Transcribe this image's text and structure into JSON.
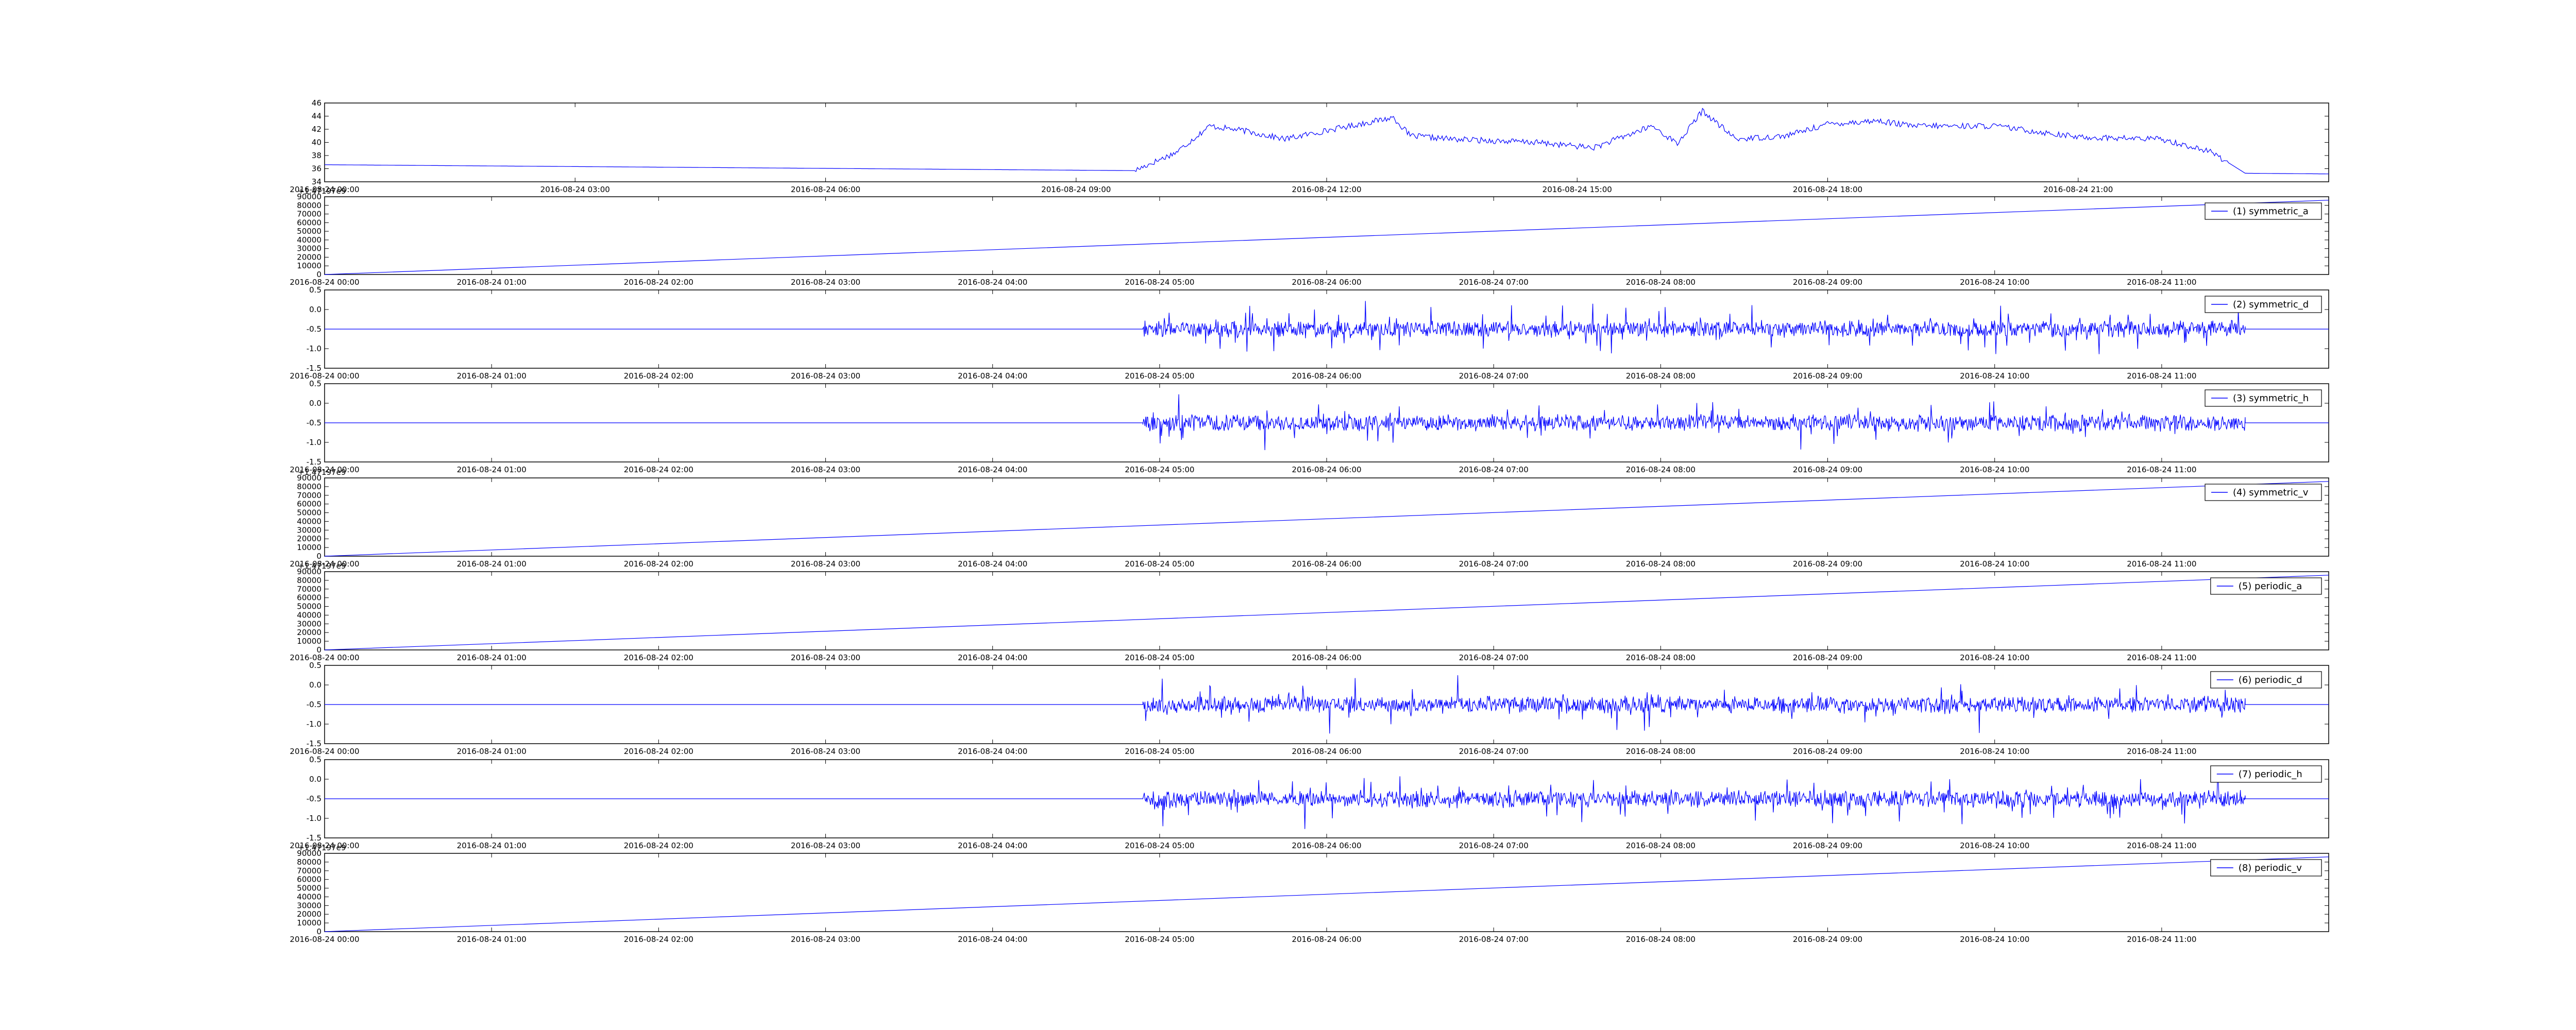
{
  "colors": {
    "series": "#0000ff",
    "frame": "#000000",
    "background": "#ffffff"
  },
  "chart_data": [
    {
      "type": "line",
      "name_in_legend": "",
      "legend": false,
      "ylim": [
        34,
        46
      ],
      "yticks": [
        "34",
        "36",
        "38",
        "40",
        "42",
        "44",
        "46"
      ],
      "xticks": [
        "2016-08-24 00:00",
        "2016-08-24 03:00",
        "2016-08-24 06:00",
        "2016-08-24 09:00",
        "2016-08-24 12:00",
        "2016-08-24 15:00",
        "2016-08-24 18:00",
        "2016-08-24 21:00"
      ],
      "x_hours": [
        0,
        3,
        6,
        9,
        12,
        15,
        18,
        21
      ],
      "x_range_hours": [
        0,
        24
      ],
      "points": [
        [
          0,
          36.6
        ],
        [
          9.7,
          35.7
        ],
        [
          10.2,
          38.5
        ],
        [
          10.6,
          42.5
        ],
        [
          11.0,
          41.8
        ],
        [
          11.5,
          40.5
        ],
        [
          12.0,
          41.8
        ],
        [
          13.0,
          41.0
        ],
        [
          12.8,
          43.8
        ],
        [
          13.5,
          40.5
        ],
        [
          14.5,
          40.0
        ],
        [
          15.2,
          39.2
        ],
        [
          15.9,
          42.5
        ],
        [
          16.2,
          39.8
        ],
        [
          16.5,
          44.8
        ],
        [
          16.9,
          40.5
        ],
        [
          17.5,
          41.0
        ],
        [
          18.0,
          42.8
        ],
        [
          18.6,
          43.3
        ],
        [
          19.0,
          42.5
        ],
        [
          20.0,
          42.5
        ],
        [
          21.0,
          40.8
        ],
        [
          22.0,
          40.5
        ],
        [
          22.6,
          38.5
        ],
        [
          23.0,
          35.3
        ],
        [
          24.0,
          35.2
        ]
      ]
    },
    {
      "type": "line",
      "series": [
        {
          "name": "(1) symmetric_a"
        }
      ],
      "offset_text": "+1.47197e9",
      "ylim": [
        0,
        90000
      ],
      "yticks": [
        "0",
        "10000",
        "20000",
        "30000",
        "40000",
        "50000",
        "60000",
        "70000",
        "80000",
        "90000"
      ],
      "xticks": [
        "2016-08-24 00:00",
        "2016-08-24 01:00",
        "2016-08-24 02:00",
        "2016-08-24 03:00",
        "2016-08-24 04:00",
        "2016-08-24 05:00",
        "2016-08-24 06:00",
        "2016-08-24 07:00",
        "2016-08-24 08:00",
        "2016-08-24 09:00",
        "2016-08-24 10:00",
        "2016-08-24 11:00"
      ],
      "x_range_hours": [
        0,
        12
      ],
      "points": [
        [
          0,
          0
        ],
        [
          12,
          86000
        ]
      ]
    },
    {
      "type": "line",
      "series": [
        {
          "name": "(2) symmetric_d"
        }
      ],
      "ylim": [
        -1.5,
        0.5
      ],
      "yticks": [
        "-1.5",
        "-1.0",
        "-0.5",
        "0.0",
        "0.5"
      ],
      "xticks": [
        "2016-08-24 00:00",
        "2016-08-24 01:00",
        "2016-08-24 02:00",
        "2016-08-24 03:00",
        "2016-08-24 04:00",
        "2016-08-24 05:00",
        "2016-08-24 06:00",
        "2016-08-24 07:00",
        "2016-08-24 08:00",
        "2016-08-24 09:00",
        "2016-08-24 10:00",
        "2016-08-24 11:00"
      ],
      "x_range_hours": [
        0,
        12
      ],
      "baseline": -0.5,
      "noise_start_hour": 4.9,
      "noise_end_hour": 11.5
    },
    {
      "type": "line",
      "series": [
        {
          "name": "(3) symmetric_h"
        }
      ],
      "ylim": [
        -1.5,
        0.5
      ],
      "yticks": [
        "-1.5",
        "-1.0",
        "-0.5",
        "0.0",
        "0.5"
      ],
      "xticks": [
        "2016-08-24 00:00",
        "2016-08-24 01:00",
        "2016-08-24 02:00",
        "2016-08-24 03:00",
        "2016-08-24 04:00",
        "2016-08-24 05:00",
        "2016-08-24 06:00",
        "2016-08-24 07:00",
        "2016-08-24 08:00",
        "2016-08-24 09:00",
        "2016-08-24 10:00",
        "2016-08-24 11:00"
      ],
      "x_range_hours": [
        0,
        12
      ],
      "baseline": -0.5,
      "noise_start_hour": 4.9,
      "noise_end_hour": 11.5
    },
    {
      "type": "line",
      "series": [
        {
          "name": "(4) symmetric_v"
        }
      ],
      "offset_text": "+1.47197e9",
      "ylim": [
        0,
        90000
      ],
      "yticks": [
        "0",
        "10000",
        "20000",
        "30000",
        "40000",
        "50000",
        "60000",
        "70000",
        "80000",
        "90000"
      ],
      "xticks": [
        "2016-08-24 00:00",
        "2016-08-24 01:00",
        "2016-08-24 02:00",
        "2016-08-24 03:00",
        "2016-08-24 04:00",
        "2016-08-24 05:00",
        "2016-08-24 06:00",
        "2016-08-24 07:00",
        "2016-08-24 08:00",
        "2016-08-24 09:00",
        "2016-08-24 10:00",
        "2016-08-24 11:00"
      ],
      "x_range_hours": [
        0,
        12
      ],
      "points": [
        [
          0,
          0
        ],
        [
          12,
          86000
        ]
      ]
    },
    {
      "type": "line",
      "series": [
        {
          "name": "(5) periodic_a"
        }
      ],
      "offset_text": "+1.47197e9",
      "ylim": [
        0,
        90000
      ],
      "yticks": [
        "0",
        "10000",
        "20000",
        "30000",
        "40000",
        "50000",
        "60000",
        "70000",
        "80000",
        "90000"
      ],
      "xticks": [
        "2016-08-24 00:00",
        "2016-08-24 01:00",
        "2016-08-24 02:00",
        "2016-08-24 03:00",
        "2016-08-24 04:00",
        "2016-08-24 05:00",
        "2016-08-24 06:00",
        "2016-08-24 07:00",
        "2016-08-24 08:00",
        "2016-08-24 09:00",
        "2016-08-24 10:00",
        "2016-08-24 11:00"
      ],
      "x_range_hours": [
        0,
        12
      ],
      "points": [
        [
          0,
          0
        ],
        [
          12,
          86000
        ]
      ]
    },
    {
      "type": "line",
      "series": [
        {
          "name": "(6) periodic_d"
        }
      ],
      "ylim": [
        -1.5,
        0.5
      ],
      "yticks": [
        "-1.5",
        "-1.0",
        "-0.5",
        "0.0",
        "0.5"
      ],
      "xticks": [
        "2016-08-24 00:00",
        "2016-08-24 01:00",
        "2016-08-24 02:00",
        "2016-08-24 03:00",
        "2016-08-24 04:00",
        "2016-08-24 05:00",
        "2016-08-24 06:00",
        "2016-08-24 07:00",
        "2016-08-24 08:00",
        "2016-08-24 09:00",
        "2016-08-24 10:00",
        "2016-08-24 11:00"
      ],
      "x_range_hours": [
        0,
        12
      ],
      "baseline": -0.5,
      "noise_start_hour": 4.9,
      "noise_end_hour": 11.5
    },
    {
      "type": "line",
      "series": [
        {
          "name": "(7) periodic_h"
        }
      ],
      "ylim": [
        -1.5,
        0.5
      ],
      "yticks": [
        "-1.5",
        "-1.0",
        "-0.5",
        "0.0",
        "0.5"
      ],
      "xticks": [
        "2016-08-24 00:00",
        "2016-08-24 01:00",
        "2016-08-24 02:00",
        "2016-08-24 03:00",
        "2016-08-24 04:00",
        "2016-08-24 05:00",
        "2016-08-24 06:00",
        "2016-08-24 07:00",
        "2016-08-24 08:00",
        "2016-08-24 09:00",
        "2016-08-24 10:00",
        "2016-08-24 11:00"
      ],
      "x_range_hours": [
        0,
        12
      ],
      "baseline": -0.5,
      "noise_start_hour": 4.9,
      "noise_end_hour": 11.5
    },
    {
      "type": "line",
      "series": [
        {
          "name": "(8) periodic_v"
        }
      ],
      "offset_text": "+1.47197e9",
      "ylim": [
        0,
        90000
      ],
      "yticks": [
        "0",
        "10000",
        "20000",
        "30000",
        "40000",
        "50000",
        "60000",
        "70000",
        "80000",
        "90000"
      ],
      "xticks": [
        "2016-08-24 00:00",
        "2016-08-24 01:00",
        "2016-08-24 02:00",
        "2016-08-24 03:00",
        "2016-08-24 04:00",
        "2016-08-24 05:00",
        "2016-08-24 06:00",
        "2016-08-24 07:00",
        "2016-08-24 08:00",
        "2016-08-24 09:00",
        "2016-08-24 10:00",
        "2016-08-24 11:00"
      ],
      "x_range_hours": [
        0,
        12
      ],
      "points": [
        [
          0,
          0
        ],
        [
          12,
          86000
        ]
      ]
    }
  ]
}
